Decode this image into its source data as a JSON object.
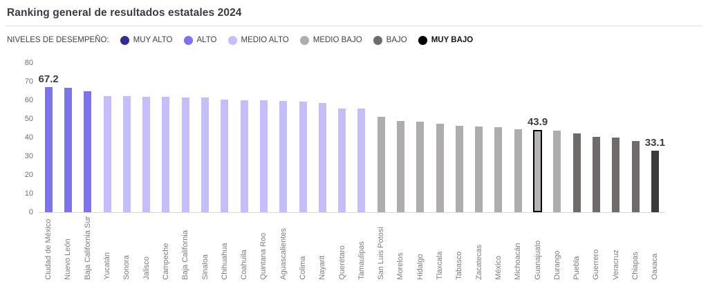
{
  "page": {
    "title": "Ranking general de resultados estatales 2024"
  },
  "colors": {
    "title_text": "#3b3b41",
    "separator": "#dddbe9",
    "legend_text": "#3f3f3f",
    "axis_text": "#6e6e6e",
    "xlabel_text": "#7c7c7c",
    "value_label_text": "#3a3d49",
    "baseline": "#d9d9d9",
    "highlight_border": "#000000",
    "highlight_fill": "#b5b3b3"
  },
  "chart_data": {
    "type": "bar",
    "title": "Ranking general de resultados estatales 2024",
    "legend_title": "NIVELES DE DESEMPEÑO:",
    "legend_position": "top",
    "grid": false,
    "xlabel": "",
    "ylabel": "",
    "ylim": [
      0,
      80
    ],
    "yticks": [
      0,
      10,
      20,
      30,
      40,
      50,
      60,
      70,
      80
    ],
    "levels": [
      {
        "label": "MUY ALTO",
        "color": "#332e8f"
      },
      {
        "label": "ALTO",
        "color": "#7d73ee"
      },
      {
        "label": "MEDIO ALTO",
        "color": "#c4befa"
      },
      {
        "label": "MEDIO BAJO",
        "color": "#aeacac"
      },
      {
        "label": "BAJO",
        "color": "#6f6b6b"
      },
      {
        "label": "MUY BAJO",
        "color": "#000000",
        "bar_color": "#3a3a3a",
        "bold": true
      }
    ],
    "bars": [
      {
        "state": "Ciudad de México",
        "value": 67.2,
        "level": "ALTO",
        "value_label": "67.2"
      },
      {
        "state": "Nuevo León",
        "value": 66.6,
        "level": "ALTO"
      },
      {
        "state": "Baja California Sur",
        "value": 64.9,
        "level": "ALTO"
      },
      {
        "state": "Yucatán",
        "value": 62.3,
        "level": "MEDIO ALTO"
      },
      {
        "state": "Sonora",
        "value": 62.2,
        "level": "MEDIO ALTO"
      },
      {
        "state": "Jalisco",
        "value": 62.0,
        "level": "MEDIO ALTO"
      },
      {
        "state": "Campeche",
        "value": 61.8,
        "level": "MEDIO ALTO"
      },
      {
        "state": "Baja California",
        "value": 61.6,
        "level": "MEDIO ALTO"
      },
      {
        "state": "Sinaloa",
        "value": 61.4,
        "level": "MEDIO ALTO"
      },
      {
        "state": "Chihuahua",
        "value": 60.2,
        "level": "MEDIO ALTO"
      },
      {
        "state": "Coahuila",
        "value": 60.0,
        "level": "MEDIO ALTO"
      },
      {
        "state": "Quintana Roo",
        "value": 59.9,
        "level": "MEDIO ALTO"
      },
      {
        "state": "Aguascalientes",
        "value": 59.8,
        "level": "MEDIO ALTO"
      },
      {
        "state": "Colima",
        "value": 59.4,
        "level": "MEDIO ALTO"
      },
      {
        "state": "Nayarit",
        "value": 58.6,
        "level": "MEDIO ALTO"
      },
      {
        "state": "Querétaro",
        "value": 55.7,
        "level": "MEDIO ALTO"
      },
      {
        "state": "Tamaulipas",
        "value": 55.4,
        "level": "MEDIO ALTO"
      },
      {
        "state": "San Luis Potosí",
        "value": 51.3,
        "level": "MEDIO BAJO"
      },
      {
        "state": "Morelos",
        "value": 49.0,
        "level": "MEDIO BAJO"
      },
      {
        "state": "Hidalgo",
        "value": 48.7,
        "level": "MEDIO BAJO"
      },
      {
        "state": "Tlaxcala",
        "value": 47.3,
        "level": "MEDIO BAJO"
      },
      {
        "state": "Tabasco",
        "value": 46.4,
        "level": "MEDIO BAJO"
      },
      {
        "state": "Zacatecas",
        "value": 45.9,
        "level": "MEDIO BAJO"
      },
      {
        "state": "México",
        "value": 45.4,
        "level": "MEDIO BAJO"
      },
      {
        "state": "Michoacán",
        "value": 44.6,
        "level": "MEDIO BAJO"
      },
      {
        "state": "Guanajuato",
        "value": 43.9,
        "level": "MEDIO BAJO",
        "value_label": "43.9",
        "highlighted": true
      },
      {
        "state": "Durango",
        "value": 43.6,
        "level": "MEDIO BAJO"
      },
      {
        "state": "Puebla",
        "value": 42.1,
        "level": "BAJO"
      },
      {
        "state": "Guerrero",
        "value": 40.3,
        "level": "BAJO"
      },
      {
        "state": "Veracruz",
        "value": 40.0,
        "level": "BAJO"
      },
      {
        "state": "Chiapas",
        "value": 38.0,
        "level": "BAJO"
      },
      {
        "state": "Oaxaca",
        "value": 33.1,
        "level": "MUY BAJO",
        "value_label": "33.1"
      }
    ]
  }
}
